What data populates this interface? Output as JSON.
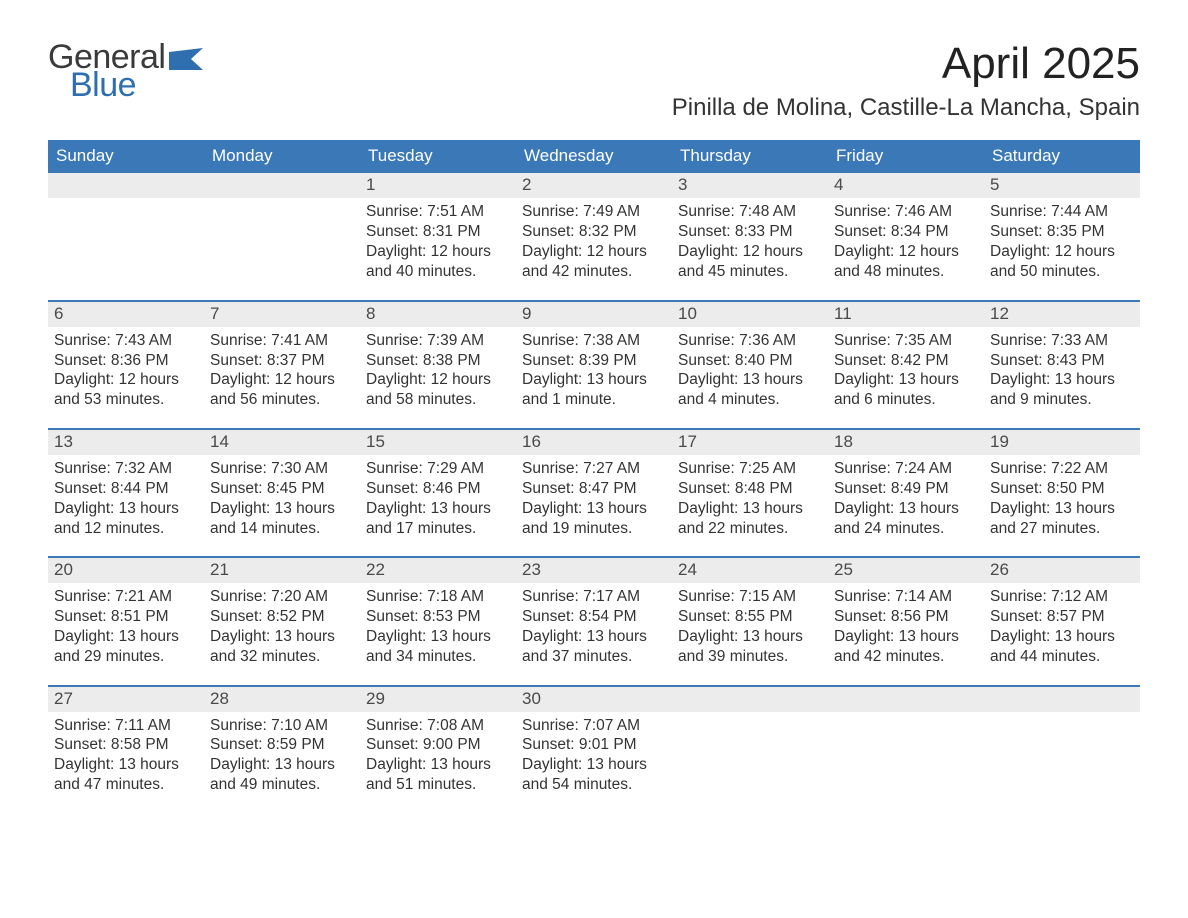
{
  "logo": {
    "text1": "General",
    "text2": "Blue",
    "flag_color": "#2f6fb0"
  },
  "title_month": "April 2025",
  "location": "Pinilla de Molina, Castille-La Mancha, Spain",
  "colors": {
    "header_bg": "#3a78b8",
    "header_text": "#ffffff",
    "daynum_bg": "#ececec",
    "text": "#333333",
    "rule": "#3a78b8"
  },
  "weekday_labels": [
    "Sunday",
    "Monday",
    "Tuesday",
    "Wednesday",
    "Thursday",
    "Friday",
    "Saturday"
  ],
  "weeks": [
    [
      {
        "day": "",
        "lines": []
      },
      {
        "day": "",
        "lines": []
      },
      {
        "day": "1",
        "lines": [
          "Sunrise: 7:51 AM",
          "Sunset: 8:31 PM",
          "Daylight: 12 hours and 40 minutes."
        ]
      },
      {
        "day": "2",
        "lines": [
          "Sunrise: 7:49 AM",
          "Sunset: 8:32 PM",
          "Daylight: 12 hours and 42 minutes."
        ]
      },
      {
        "day": "3",
        "lines": [
          "Sunrise: 7:48 AM",
          "Sunset: 8:33 PM",
          "Daylight: 12 hours and 45 minutes."
        ]
      },
      {
        "day": "4",
        "lines": [
          "Sunrise: 7:46 AM",
          "Sunset: 8:34 PM",
          "Daylight: 12 hours and 48 minutes."
        ]
      },
      {
        "day": "5",
        "lines": [
          "Sunrise: 7:44 AM",
          "Sunset: 8:35 PM",
          "Daylight: 12 hours and 50 minutes."
        ]
      }
    ],
    [
      {
        "day": "6",
        "lines": [
          "Sunrise: 7:43 AM",
          "Sunset: 8:36 PM",
          "Daylight: 12 hours and 53 minutes."
        ]
      },
      {
        "day": "7",
        "lines": [
          "Sunrise: 7:41 AM",
          "Sunset: 8:37 PM",
          "Daylight: 12 hours and 56 minutes."
        ]
      },
      {
        "day": "8",
        "lines": [
          "Sunrise: 7:39 AM",
          "Sunset: 8:38 PM",
          "Daylight: 12 hours and 58 minutes."
        ]
      },
      {
        "day": "9",
        "lines": [
          "Sunrise: 7:38 AM",
          "Sunset: 8:39 PM",
          "Daylight: 13 hours and 1 minute."
        ]
      },
      {
        "day": "10",
        "lines": [
          "Sunrise: 7:36 AM",
          "Sunset: 8:40 PM",
          "Daylight: 13 hours and 4 minutes."
        ]
      },
      {
        "day": "11",
        "lines": [
          "Sunrise: 7:35 AM",
          "Sunset: 8:42 PM",
          "Daylight: 13 hours and 6 minutes."
        ]
      },
      {
        "day": "12",
        "lines": [
          "Sunrise: 7:33 AM",
          "Sunset: 8:43 PM",
          "Daylight: 13 hours and 9 minutes."
        ]
      }
    ],
    [
      {
        "day": "13",
        "lines": [
          "Sunrise: 7:32 AM",
          "Sunset: 8:44 PM",
          "Daylight: 13 hours and 12 minutes."
        ]
      },
      {
        "day": "14",
        "lines": [
          "Sunrise: 7:30 AM",
          "Sunset: 8:45 PM",
          "Daylight: 13 hours and 14 minutes."
        ]
      },
      {
        "day": "15",
        "lines": [
          "Sunrise: 7:29 AM",
          "Sunset: 8:46 PM",
          "Daylight: 13 hours and 17 minutes."
        ]
      },
      {
        "day": "16",
        "lines": [
          "Sunrise: 7:27 AM",
          "Sunset: 8:47 PM",
          "Daylight: 13 hours and 19 minutes."
        ]
      },
      {
        "day": "17",
        "lines": [
          "Sunrise: 7:25 AM",
          "Sunset: 8:48 PM",
          "Daylight: 13 hours and 22 minutes."
        ]
      },
      {
        "day": "18",
        "lines": [
          "Sunrise: 7:24 AM",
          "Sunset: 8:49 PM",
          "Daylight: 13 hours and 24 minutes."
        ]
      },
      {
        "day": "19",
        "lines": [
          "Sunrise: 7:22 AM",
          "Sunset: 8:50 PM",
          "Daylight: 13 hours and 27 minutes."
        ]
      }
    ],
    [
      {
        "day": "20",
        "lines": [
          "Sunrise: 7:21 AM",
          "Sunset: 8:51 PM",
          "Daylight: 13 hours and 29 minutes."
        ]
      },
      {
        "day": "21",
        "lines": [
          "Sunrise: 7:20 AM",
          "Sunset: 8:52 PM",
          "Daylight: 13 hours and 32 minutes."
        ]
      },
      {
        "day": "22",
        "lines": [
          "Sunrise: 7:18 AM",
          "Sunset: 8:53 PM",
          "Daylight: 13 hours and 34 minutes."
        ]
      },
      {
        "day": "23",
        "lines": [
          "Sunrise: 7:17 AM",
          "Sunset: 8:54 PM",
          "Daylight: 13 hours and 37 minutes."
        ]
      },
      {
        "day": "24",
        "lines": [
          "Sunrise: 7:15 AM",
          "Sunset: 8:55 PM",
          "Daylight: 13 hours and 39 minutes."
        ]
      },
      {
        "day": "25",
        "lines": [
          "Sunrise: 7:14 AM",
          "Sunset: 8:56 PM",
          "Daylight: 13 hours and 42 minutes."
        ]
      },
      {
        "day": "26",
        "lines": [
          "Sunrise: 7:12 AM",
          "Sunset: 8:57 PM",
          "Daylight: 13 hours and 44 minutes."
        ]
      }
    ],
    [
      {
        "day": "27",
        "lines": [
          "Sunrise: 7:11 AM",
          "Sunset: 8:58 PM",
          "Daylight: 13 hours and 47 minutes."
        ]
      },
      {
        "day": "28",
        "lines": [
          "Sunrise: 7:10 AM",
          "Sunset: 8:59 PM",
          "Daylight: 13 hours and 49 minutes."
        ]
      },
      {
        "day": "29",
        "lines": [
          "Sunrise: 7:08 AM",
          "Sunset: 9:00 PM",
          "Daylight: 13 hours and 51 minutes."
        ]
      },
      {
        "day": "30",
        "lines": [
          "Sunrise: 7:07 AM",
          "Sunset: 9:01 PM",
          "Daylight: 13 hours and 54 minutes."
        ]
      },
      {
        "day": "",
        "lines": []
      },
      {
        "day": "",
        "lines": []
      },
      {
        "day": "",
        "lines": []
      }
    ]
  ]
}
